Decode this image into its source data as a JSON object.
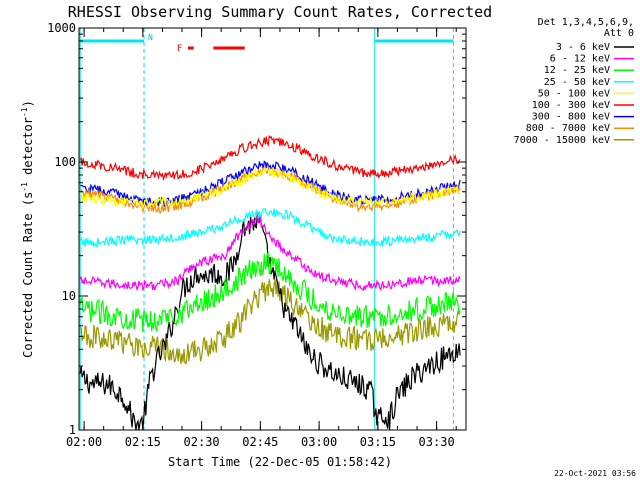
{
  "chart_data": {
    "type": "line",
    "title": "RHESSI Observing Summary Count Rates, Corrected",
    "xlabel": "Start Time (22-Dec-05 01:58:42)",
    "ylabel_parts": {
      "before": "Corrected Count Rate (s",
      "exp1": "-1",
      "mid": " detector",
      "exp2": "-1",
      "after": ")"
    },
    "footer": "22-Oct-2021 03:56",
    "y_scale": "log",
    "ylim": [
      1,
      1000
    ],
    "xlim_minutes": [
      118.7,
      217.5
    ],
    "x_ticks": [
      {
        "t": 120,
        "label": "02:00"
      },
      {
        "t": 135,
        "label": "02:15"
      },
      {
        "t": 150,
        "label": "02:30"
      },
      {
        "t": 165,
        "label": "02:45"
      },
      {
        "t": 180,
        "label": "03:00"
      },
      {
        "t": 195,
        "label": "03:15"
      },
      {
        "t": 210,
        "label": "03:30"
      }
    ],
    "y_ticks": [
      {
        "v": 1,
        "label": "1"
      },
      {
        "v": 10,
        "label": "10"
      },
      {
        "v": 100,
        "label": "100"
      },
      {
        "v": 1000,
        "label": "1000"
      }
    ],
    "legend_header": [
      "Det 1,3,4,5,6,9,",
      "Att 0"
    ],
    "grid": false,
    "night_periods": [
      {
        "start": 119,
        "end": 135.3,
        "label": "N"
      },
      {
        "start": 194.2,
        "end": 214.3,
        "label": ""
      }
    ],
    "flare_flags": [
      {
        "start": 146.5,
        "end": 148,
        "label": "F"
      },
      {
        "start": 153,
        "end": 161,
        "label": ""
      }
    ],
    "series": [
      {
        "name": "3 - 6 keV",
        "color": "#000000",
        "points": [
          [
            119,
            2.5
          ],
          [
            122,
            2.2
          ],
          [
            126,
            2.2
          ],
          [
            130,
            1.8
          ],
          [
            133,
            1.1
          ],
          [
            135,
            1.1
          ],
          [
            137,
            2.5
          ],
          [
            139,
            3.5
          ],
          [
            141,
            4.5
          ],
          [
            143,
            7
          ],
          [
            145,
            11
          ],
          [
            147,
            13
          ],
          [
            149,
            15
          ],
          [
            151,
            14
          ],
          [
            153,
            15
          ],
          [
            155,
            14
          ],
          [
            157,
            15
          ],
          [
            159,
            20
          ],
          [
            160,
            30
          ],
          [
            162,
            34
          ],
          [
            164,
            36
          ],
          [
            165,
            35
          ],
          [
            166,
            25
          ],
          [
            168,
            15
          ],
          [
            170,
            10
          ],
          [
            172,
            7
          ],
          [
            174,
            6
          ],
          [
            176,
            4.5
          ],
          [
            178,
            3.5
          ],
          [
            181,
            3
          ],
          [
            185,
            2.5
          ],
          [
            190,
            2.2
          ],
          [
            193,
            2
          ],
          [
            195,
            1.2
          ],
          [
            197,
            1.3
          ],
          [
            198,
            1.2
          ],
          [
            200,
            1.8
          ],
          [
            204,
            2.5
          ],
          [
            208,
            3
          ],
          [
            212,
            3.5
          ],
          [
            216,
            4
          ]
        ]
      },
      {
        "name": "6 - 12 keV",
        "color": "#ff00ff",
        "points": [
          [
            119,
            13
          ],
          [
            125,
            12.5
          ],
          [
            132,
            12
          ],
          [
            138,
            12
          ],
          [
            141,
            12.5
          ],
          [
            144,
            13
          ],
          [
            146,
            15
          ],
          [
            148,
            17
          ],
          [
            150,
            18
          ],
          [
            153,
            19
          ],
          [
            156,
            20
          ],
          [
            158,
            25
          ],
          [
            160,
            30
          ],
          [
            162,
            34
          ],
          [
            164,
            37
          ],
          [
            165,
            36
          ],
          [
            166,
            32
          ],
          [
            168,
            27
          ],
          [
            171,
            22
          ],
          [
            174,
            19
          ],
          [
            177,
            16
          ],
          [
            180,
            14
          ],
          [
            185,
            13
          ],
          [
            190,
            12
          ],
          [
            195,
            12
          ],
          [
            200,
            12.5
          ],
          [
            205,
            13
          ],
          [
            210,
            13
          ],
          [
            216,
            13
          ]
        ]
      },
      {
        "name": "12 - 25 keV",
        "color": "#00ff00",
        "points": [
          [
            119,
            8
          ],
          [
            125,
            7.5
          ],
          [
            130,
            7
          ],
          [
            135,
            6.5
          ],
          [
            138,
            6.5
          ],
          [
            141,
            7
          ],
          [
            144,
            7.5
          ],
          [
            147,
            8
          ],
          [
            150,
            9
          ],
          [
            153,
            10
          ],
          [
            156,
            11
          ],
          [
            159,
            13
          ],
          [
            162,
            15
          ],
          [
            165,
            17
          ],
          [
            167,
            18
          ],
          [
            169,
            17
          ],
          [
            171,
            15
          ],
          [
            173,
            13
          ],
          [
            176,
            11
          ],
          [
            179,
            9
          ],
          [
            182,
            8
          ],
          [
            186,
            7.5
          ],
          [
            190,
            7
          ],
          [
            195,
            7
          ],
          [
            200,
            7.5
          ],
          [
            205,
            8
          ],
          [
            210,
            8.5
          ],
          [
            216,
            9
          ]
        ]
      },
      {
        "name": "25 - 50 keV",
        "color": "#00ffff",
        "points": [
          [
            119,
            25
          ],
          [
            125,
            25.5
          ],
          [
            130,
            26
          ],
          [
            135,
            26
          ],
          [
            140,
            27
          ],
          [
            145,
            28
          ],
          [
            150,
            30
          ],
          [
            154,
            32
          ],
          [
            157,
            35
          ],
          [
            160,
            38
          ],
          [
            163,
            40
          ],
          [
            166,
            42
          ],
          [
            169,
            42
          ],
          [
            172,
            40
          ],
          [
            175,
            36
          ],
          [
            178,
            32
          ],
          [
            182,
            28
          ],
          [
            186,
            26
          ],
          [
            190,
            25.5
          ],
          [
            195,
            25
          ],
          [
            200,
            26
          ],
          [
            205,
            27
          ],
          [
            210,
            28
          ],
          [
            216,
            30
          ]
        ]
      },
      {
        "name": "50 - 100 keV",
        "color": "#ffff00",
        "points": [
          [
            119,
            55
          ],
          [
            125,
            52
          ],
          [
            130,
            50
          ],
          [
            135,
            49
          ],
          [
            140,
            50
          ],
          [
            145,
            52
          ],
          [
            150,
            56
          ],
          [
            155,
            62
          ],
          [
            160,
            72
          ],
          [
            164,
            82
          ],
          [
            167,
            85
          ],
          [
            170,
            82
          ],
          [
            174,
            74
          ],
          [
            178,
            64
          ],
          [
            182,
            56
          ],
          [
            186,
            52
          ],
          [
            190,
            50
          ],
          [
            195,
            50
          ],
          [
            200,
            52
          ],
          [
            205,
            55
          ],
          [
            210,
            58
          ],
          [
            216,
            62
          ]
        ]
      },
      {
        "name": "100 - 300 keV",
        "color": "#ff0000",
        "points": [
          [
            119,
            100
          ],
          [
            124,
            95
          ],
          [
            128,
            90
          ],
          [
            132,
            84
          ],
          [
            136,
            80
          ],
          [
            140,
            78
          ],
          [
            144,
            80
          ],
          [
            148,
            85
          ],
          [
            152,
            95
          ],
          [
            156,
            110
          ],
          [
            160,
            125
          ],
          [
            164,
            138
          ],
          [
            167,
            145
          ],
          [
            170,
            140
          ],
          [
            174,
            128
          ],
          [
            178,
            112
          ],
          [
            182,
            100
          ],
          [
            186,
            90
          ],
          [
            190,
            84
          ],
          [
            195,
            82
          ],
          [
            200,
            85
          ],
          [
            205,
            90
          ],
          [
            210,
            98
          ],
          [
            216,
            104
          ]
        ]
      },
      {
        "name": "300 - 800 keV",
        "color": "#0000ff",
        "points": [
          [
            119,
            63
          ],
          [
            124,
            62
          ],
          [
            128,
            58
          ],
          [
            132,
            54
          ],
          [
            136,
            51
          ],
          [
            140,
            50
          ],
          [
            144,
            52
          ],
          [
            148,
            57
          ],
          [
            152,
            63
          ],
          [
            156,
            72
          ],
          [
            160,
            82
          ],
          [
            164,
            92
          ],
          [
            167,
            96
          ],
          [
            170,
            92
          ],
          [
            174,
            82
          ],
          [
            178,
            71
          ],
          [
            182,
            61
          ],
          [
            186,
            55
          ],
          [
            190,
            52
          ],
          [
            195,
            52
          ],
          [
            200,
            54
          ],
          [
            205,
            58
          ],
          [
            210,
            63
          ],
          [
            216,
            68
          ]
        ]
      },
      {
        "name": "800 - 7000 keV",
        "color": "#ff8800",
        "points": [
          [
            119,
            59
          ],
          [
            124,
            57
          ],
          [
            128,
            53
          ],
          [
            132,
            49
          ],
          [
            136,
            46
          ],
          [
            140,
            45
          ],
          [
            144,
            47
          ],
          [
            148,
            51
          ],
          [
            152,
            57
          ],
          [
            156,
            65
          ],
          [
            160,
            74
          ],
          [
            164,
            83
          ],
          [
            167,
            87
          ],
          [
            170,
            84
          ],
          [
            174,
            75
          ],
          [
            178,
            65
          ],
          [
            182,
            56
          ],
          [
            186,
            50
          ],
          [
            190,
            47
          ],
          [
            195,
            47
          ],
          [
            200,
            49
          ],
          [
            205,
            53
          ],
          [
            210,
            58
          ],
          [
            216,
            63
          ]
        ]
      },
      {
        "name": "7000 - 15000 keV",
        "color": "#999900",
        "points": [
          [
            119,
            5
          ],
          [
            122,
            5
          ],
          [
            126,
            4.8
          ],
          [
            130,
            4.5
          ],
          [
            134,
            4.3
          ],
          [
            138,
            4.2
          ],
          [
            141,
            4
          ],
          [
            144,
            3.8
          ],
          [
            147,
            3.8
          ],
          [
            150,
            4
          ],
          [
            153,
            4.5
          ],
          [
            156,
            5
          ],
          [
            159,
            6
          ],
          [
            162,
            8
          ],
          [
            165,
            10
          ],
          [
            167,
            11.5
          ],
          [
            169,
            11.5
          ],
          [
            171,
            10.5
          ],
          [
            173,
            9
          ],
          [
            176,
            7
          ],
          [
            179,
            6
          ],
          [
            182,
            5.5
          ],
          [
            186,
            5
          ],
          [
            190,
            4.8
          ],
          [
            195,
            4.7
          ],
          [
            200,
            5
          ],
          [
            205,
            5.5
          ],
          [
            210,
            6
          ],
          [
            216,
            6.5
          ]
        ]
      }
    ]
  }
}
